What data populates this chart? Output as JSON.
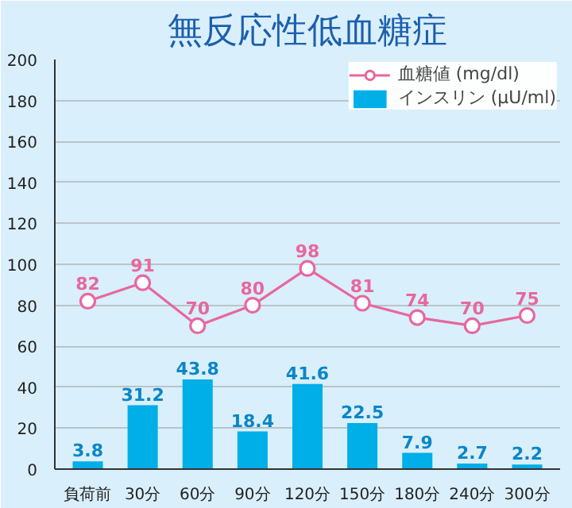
{
  "chart_data": {
    "type": "bar",
    "title": "無反応性低血糖症",
    "categories": [
      "負荷前",
      "30分",
      "60分",
      "90分",
      "120分",
      "150分",
      "180分",
      "240分",
      "300分"
    ],
    "series": [
      {
        "name": "血糖値 (mg/dl)",
        "type": "line",
        "color": "#e8679e",
        "marker": "circle",
        "values": [
          82,
          91,
          70,
          80,
          98,
          81,
          74,
          70,
          75
        ]
      },
      {
        "name": "インスリン (μU/ml)",
        "color": "#00aee8",
        "values": [
          3.8,
          31.2,
          43.8,
          18.4,
          41.6,
          22.5,
          7.9,
          2.7,
          2.2
        ]
      }
    ],
    "ylim": [
      0,
      200
    ],
    "yticks": [
      0,
      20,
      40,
      60,
      80,
      100,
      120,
      140,
      160,
      180,
      200
    ],
    "grid": "y",
    "legend": "top right",
    "data_labels": true
  }
}
